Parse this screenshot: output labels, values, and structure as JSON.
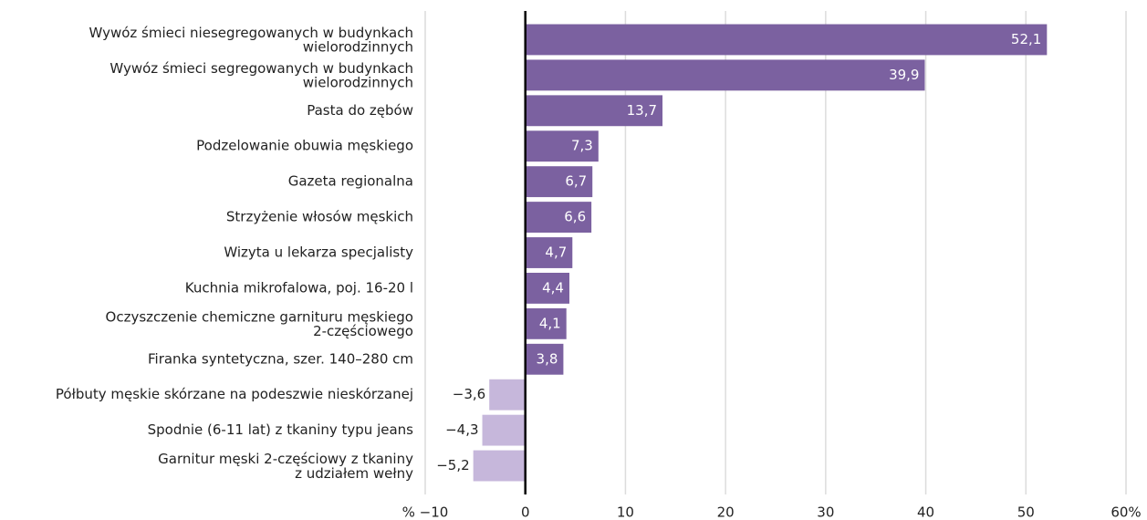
{
  "chart_data": {
    "type": "barh",
    "categories": [
      "Wywóz śmieci niesegregowanych w budynkach\nwielorodzinnych",
      "Wywóz śmieci segregowanych w budynkach\nwielorodzinnych",
      "Pasta do zębów",
      "Podzelowanie obuwia męskiego",
      "Gazeta regionalna",
      "Strzyżenie włosów męskich",
      "Wizyta u lekarza specjalisty",
      "Kuchnia mikrofalowa, poj. 16-20 l",
      "Oczyszczenie chemiczne garnituru męskiego\n2-częściowego",
      "Firanka syntetyczna, szer. 140–280 cm",
      "Półbuty męskie skórzane na podeszwie nieskórzanej",
      "Spodnie (6-11 lat) z tkaniny typu jeans",
      "Garnitur męski 2-częściowy z tkaniny\nz udziałem wełny"
    ],
    "values": [
      52.1,
      39.9,
      13.7,
      7.3,
      6.7,
      6.6,
      4.7,
      4.4,
      4.1,
      3.8,
      -3.6,
      -4.3,
      -5.2
    ],
    "value_labels": [
      "52,1",
      "39,9",
      "13,7",
      "7,3",
      "6,7",
      "6,6",
      "4,7",
      "4,4",
      "4,1",
      "3,8",
      "−3,6",
      "−4,3",
      "−5,2"
    ],
    "color": "#7b61a0",
    "negative_color": "#c6b7db",
    "xlim": [
      -10,
      60
    ],
    "xticks": [
      {
        "value": -10,
        "label": "% −10"
      },
      0,
      10,
      20,
      30,
      40,
      50,
      {
        "value": 60,
        "label": "60%"
      }
    ],
    "grid": true
  }
}
